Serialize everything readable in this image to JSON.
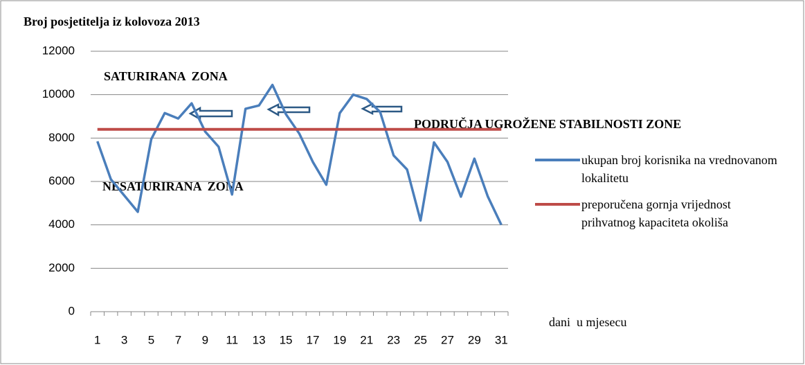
{
  "chart_data": {
    "type": "line",
    "title": "Broj posjetitelja iz kolovoza 2013",
    "x_label": "dani  u mjesecu",
    "annotations": [
      "SATURIRANA  ZONA",
      "NESATURIRANA  ZONA",
      "PODRUČJA UGROŽENE STABILNOSTI ZONE"
    ],
    "categories": [
      1,
      null,
      3,
      null,
      5,
      null,
      7,
      null,
      9,
      null,
      11,
      null,
      13,
      null,
      15,
      null,
      17,
      null,
      19,
      null,
      21,
      null,
      23,
      null,
      25,
      null,
      27,
      null,
      29,
      null,
      31
    ],
    "series": [
      {
        "name": "ukupan broj korisnika na vrednovanom lokalitetu",
        "color": "#4a7ebb",
        "values": [
          7850,
          6100,
          5350,
          4600,
          7950,
          9150,
          8900,
          9600,
          8300,
          7600,
          5400,
          9350,
          9500,
          10450,
          9100,
          8200,
          6900,
          5850,
          9150,
          10000,
          9800,
          9200,
          7200,
          6550,
          4200,
          7800,
          6900,
          5300,
          7050,
          5300,
          4000
        ]
      },
      {
        "name": "preporučena gornja vrijednost prihvatnog kapaciteta okoliša",
        "color": "#be4b48",
        "values": [
          8400,
          8400,
          8400,
          8400,
          8400,
          8400,
          8400,
          8400,
          8400,
          8400,
          8400,
          8400,
          8400,
          8400,
          8400,
          8400,
          8400,
          8400,
          8400,
          8400,
          8400,
          8400,
          8400,
          8400,
          8400,
          8400,
          8400,
          8400,
          8400,
          8400,
          8400
        ]
      }
    ],
    "ylim": [
      0,
      12000
    ],
    "yticks": [
      0,
      2000,
      4000,
      6000,
      8000,
      10000,
      12000
    ],
    "grid": true,
    "legend": "right"
  }
}
